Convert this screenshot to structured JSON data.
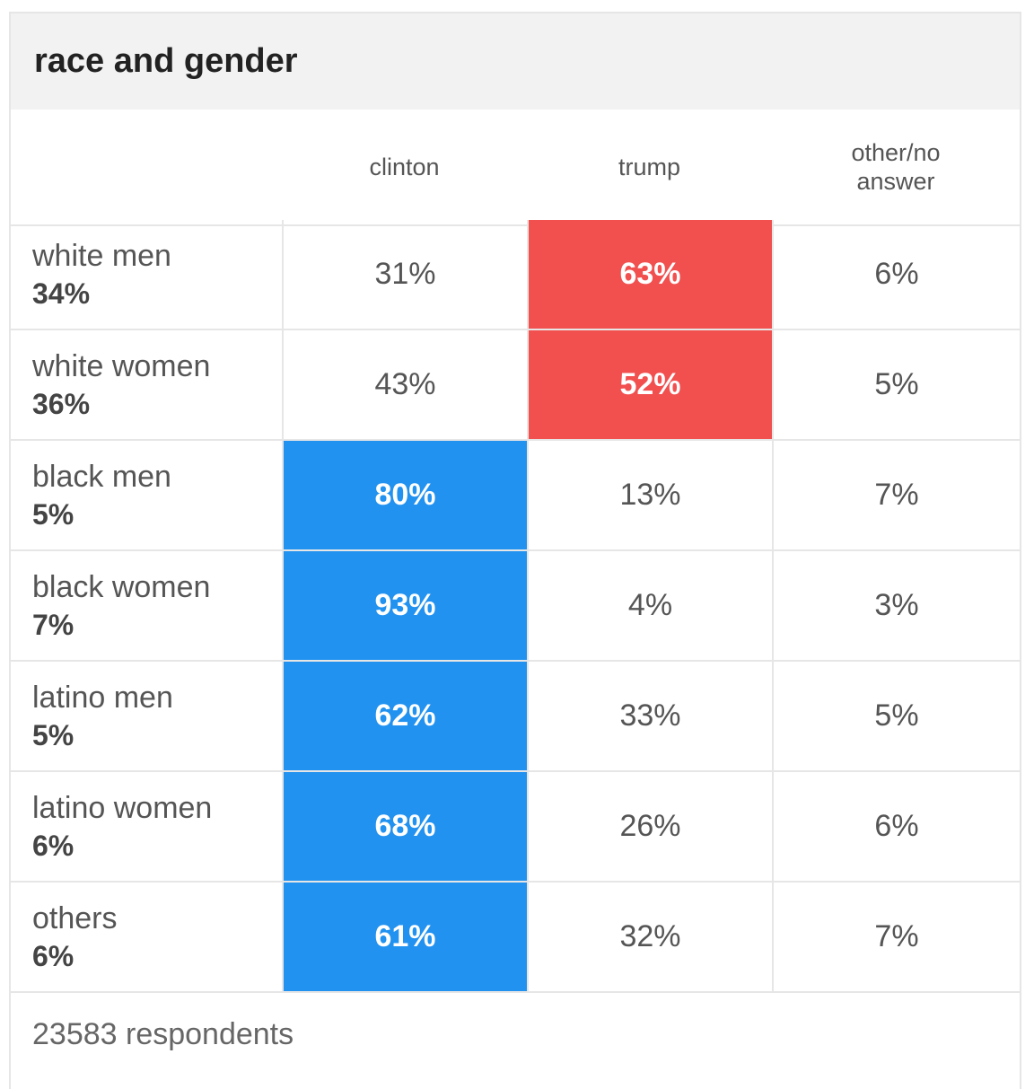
{
  "title": "race and gender",
  "columns": [
    "clinton",
    "trump",
    "other/no answer"
  ],
  "colors": {
    "clinton_highlight": "#2192f0",
    "trump_highlight": "#f24f4f",
    "border": "#e6e6e6",
    "header_bg": "#f2f2f2"
  },
  "chart_data": {
    "type": "table",
    "title": "race and gender",
    "columns": [
      "clinton",
      "trump",
      "other/no answer"
    ],
    "rows": [
      {
        "label": "white men",
        "share": "34%",
        "values": [
          "31%",
          "63%",
          "6%"
        ],
        "winner": "trump"
      },
      {
        "label": "white women",
        "share": "36%",
        "values": [
          "43%",
          "52%",
          "5%"
        ],
        "winner": "trump"
      },
      {
        "label": "black men",
        "share": "5%",
        "values": [
          "80%",
          "13%",
          "7%"
        ],
        "winner": "clinton"
      },
      {
        "label": "black women",
        "share": "7%",
        "values": [
          "93%",
          "4%",
          "3%"
        ],
        "winner": "clinton"
      },
      {
        "label": "latino men",
        "share": "5%",
        "values": [
          "62%",
          "33%",
          "5%"
        ],
        "winner": "clinton"
      },
      {
        "label": "latino women",
        "share": "6%",
        "values": [
          "68%",
          "26%",
          "6%"
        ],
        "winner": "clinton"
      },
      {
        "label": "others",
        "share": "6%",
        "values": [
          "61%",
          "32%",
          "7%"
        ],
        "winner": "clinton"
      }
    ]
  },
  "footer": "23583 respondents"
}
